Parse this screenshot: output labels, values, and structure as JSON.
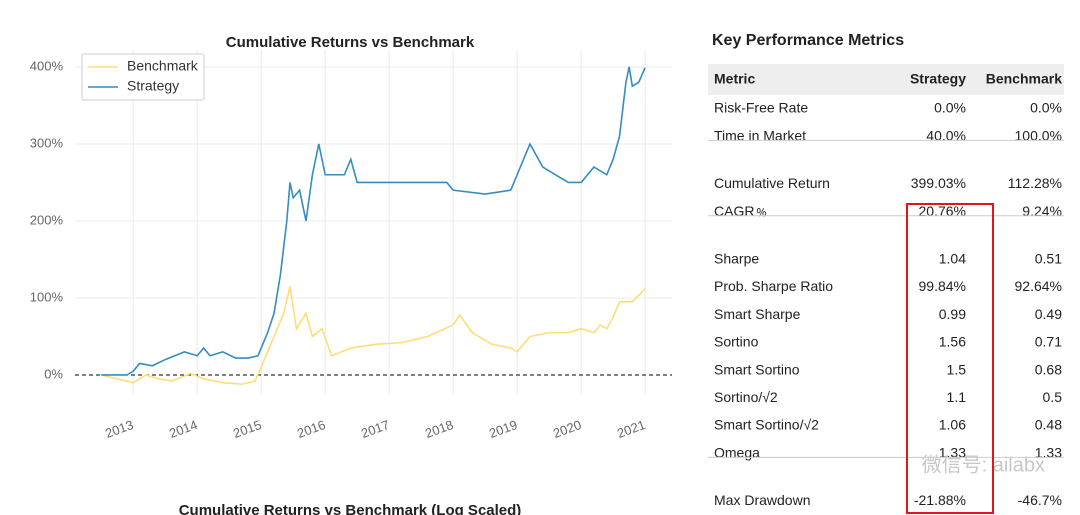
{
  "chart_data": {
    "type": "line",
    "title": "Cumulative Returns vs Benchmark",
    "xlim": [
      2012.09,
      2021.42
    ],
    "xticks": [
      2013,
      2014,
      2015,
      2016,
      2017,
      2018,
      2019,
      2020,
      2021
    ],
    "ylim": [
      -26,
      422
    ],
    "yticks": [
      {
        "value": 0,
        "label": "0%"
      },
      {
        "value": 100,
        "label": "100%"
      },
      {
        "value": 200,
        "label": "200%"
      },
      {
        "value": 300,
        "label": "300%"
      },
      {
        "value": 400,
        "label": "400%"
      }
    ],
    "grid": true,
    "legend": "upper-left",
    "series": [
      {
        "name": "Benchmark",
        "color": "#fedd78",
        "x": [
          2012.5,
          2012.9,
          2013.0,
          2013.2,
          2013.4,
          2013.6,
          2013.9,
          2014.1,
          2014.4,
          2014.7,
          2014.9,
          2015.0,
          2015.2,
          2015.35,
          2015.45,
          2015.55,
          2015.7,
          2015.8,
          2015.95,
          2016.1,
          2016.4,
          2016.8,
          2017.2,
          2017.6,
          2018.0,
          2018.1,
          2018.3,
          2018.6,
          2018.9,
          2019.0,
          2019.2,
          2019.5,
          2019.8,
          2020.0,
          2020.2,
          2020.3,
          2020.4,
          2020.5,
          2020.6,
          2020.8,
          2021.0
        ],
        "values": [
          0,
          -8,
          -10,
          0,
          -5,
          -8,
          2,
          -5,
          -10,
          -12,
          -8,
          10,
          50,
          80,
          115,
          60,
          80,
          50,
          60,
          25,
          35,
          40,
          42,
          50,
          65,
          78,
          55,
          40,
          35,
          30,
          50,
          55,
          55,
          60,
          55,
          65,
          60,
          75,
          95,
          95,
          112
        ]
      },
      {
        "name": "Strategy",
        "color": "#348dc1",
        "x": [
          2012.5,
          2012.9,
          2013.0,
          2013.1,
          2013.3,
          2013.5,
          2013.8,
          2014.0,
          2014.1,
          2014.2,
          2014.4,
          2014.6,
          2014.8,
          2014.95,
          2015.0,
          2015.1,
          2015.2,
          2015.3,
          2015.4,
          2015.45,
          2015.5,
          2015.6,
          2015.7,
          2015.8,
          2015.9,
          2016.0,
          2016.3,
          2016.4,
          2016.5,
          2016.8,
          2017.0,
          2017.5,
          2017.9,
          2018.0,
          2018.5,
          2018.9,
          2019.0,
          2019.2,
          2019.4,
          2019.6,
          2019.8,
          2020.0,
          2020.2,
          2020.4,
          2020.5,
          2020.6,
          2020.7,
          2020.75,
          2020.8,
          2020.9,
          2021.0
        ],
        "values": [
          0,
          0,
          5,
          15,
          12,
          20,
          30,
          25,
          35,
          25,
          30,
          22,
          22,
          25,
          35,
          55,
          80,
          130,
          200,
          250,
          230,
          240,
          200,
          260,
          300,
          260,
          260,
          280,
          250,
          250,
          250,
          250,
          250,
          240,
          235,
          240,
          260,
          300,
          270,
          260,
          250,
          250,
          270,
          260,
          280,
          310,
          380,
          400,
          375,
          380,
          399
        ]
      }
    ]
  },
  "metrics": {
    "title": "Key Performance Metrics",
    "header": [
      "Metric",
      "Strategy",
      "Benchmark"
    ],
    "sections": [
      [
        [
          "Risk-Free Rate",
          "0.0%",
          "0.0%"
        ],
        [
          "Time in Market",
          "40.0%",
          "100.0%"
        ]
      ],
      [
        [
          "Cumulative Return",
          "399.03%",
          "112.28%"
        ],
        [
          "CAGR﹪",
          "20.76%",
          "9.24%"
        ]
      ],
      [
        [
          "Sharpe",
          "1.04",
          "0.51"
        ],
        [
          "Prob. Sharpe Ratio",
          "99.84%",
          "92.64%"
        ],
        [
          "Smart Sharpe",
          "0.99",
          "0.49"
        ],
        [
          "Sortino",
          "1.56",
          "0.71"
        ],
        [
          "Smart Sortino",
          "1.5",
          "0.68"
        ],
        [
          "Sortino/√2",
          "1.1",
          "0.5"
        ],
        [
          "Smart Sortino/√2",
          "1.06",
          "0.48"
        ],
        [
          "Omega",
          "1.33",
          "1.33"
        ]
      ],
      [
        [
          "Max Drawdown",
          "-21.88%",
          "-46.7%"
        ]
      ]
    ]
  },
  "watermark": "微信号: ailabx",
  "next_chart_title": "Cumulative Returns vs Benchmark (Log Scaled)"
}
